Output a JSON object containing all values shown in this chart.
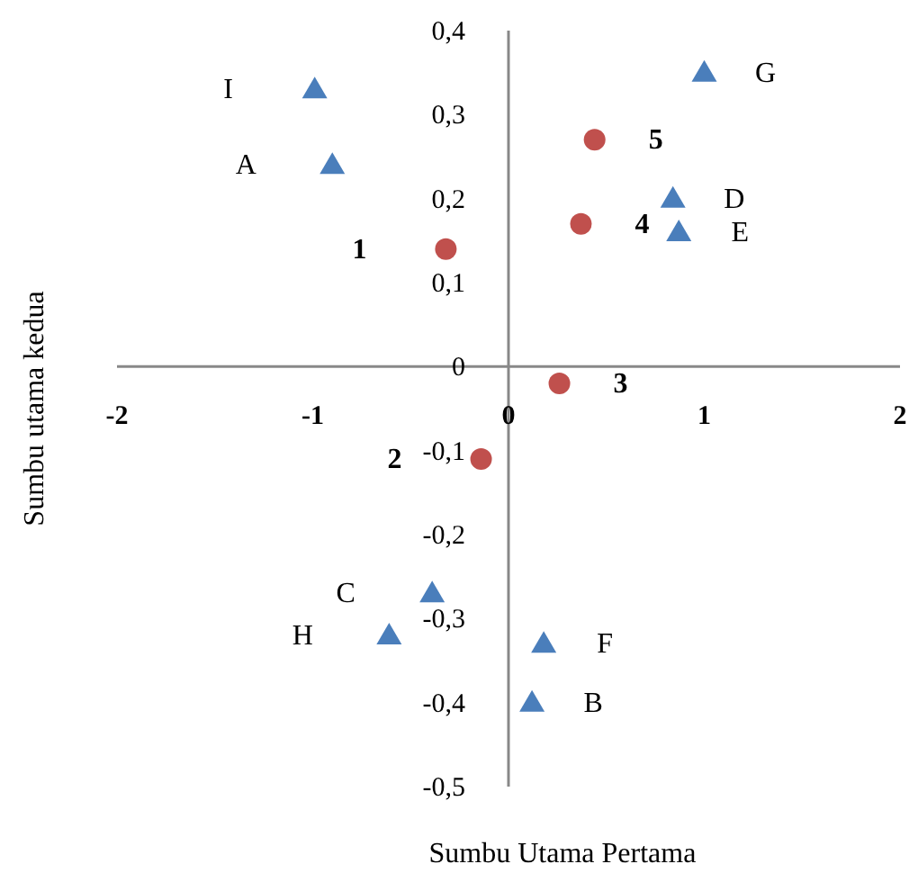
{
  "chart_data": {
    "type": "scatter",
    "xlabel": "Sumbu Utama Pertama",
    "ylabel": "Sumbu utama kedua",
    "xlim": [
      -2,
      2
    ],
    "xticks": [
      -2,
      -1,
      0,
      1,
      2
    ],
    "ylim": [
      -0.5,
      0.4
    ],
    "yticks": [
      {
        "value": -0.5,
        "label": "-0,5"
      },
      {
        "value": -0.4,
        "label": "-0,4"
      },
      {
        "value": -0.3,
        "label": "-0,3"
      },
      {
        "value": -0.2,
        "label": "-0,2"
      },
      {
        "value": -0.1,
        "label": "-0,1"
      },
      {
        "value": 0,
        "label": "0"
      },
      {
        "value": 0.1,
        "label": "0,1"
      },
      {
        "value": 0.2,
        "label": "0,2"
      },
      {
        "value": 0.3,
        "label": "0,3"
      },
      {
        "value": 0.4,
        "label": "0,4"
      }
    ],
    "grid": false,
    "series": [
      {
        "color": "#4a7ebb",
        "marker": "triangle",
        "x": [
          -0.99,
          -0.9,
          1.0,
          0.84,
          0.87,
          -0.39,
          -0.61,
          0.18,
          0.12
        ],
        "values": [
          0.33,
          0.24,
          0.35,
          0.2,
          0.16,
          -0.27,
          -0.32,
          -0.33,
          -0.4
        ]
      },
      {
        "color": "#c0504d",
        "marker": "circle",
        "x": [
          -0.32,
          0.44,
          0.37,
          0.26,
          -0.14
        ],
        "values": [
          0.14,
          0.27,
          0.17,
          -0.02,
          -0.11
        ]
      }
    ],
    "annotations": [
      {
        "text": "I",
        "x": -0.99,
        "y": 0.33
      },
      {
        "text": "A",
        "x": -0.9,
        "y": 0.24
      },
      {
        "text": "G",
        "x": 1.0,
        "y": 0.35
      },
      {
        "text": "D",
        "x": 0.84,
        "y": 0.2
      },
      {
        "text": "E",
        "x": 0.87,
        "y": 0.16
      },
      {
        "text": "C",
        "x": -0.39,
        "y": -0.27
      },
      {
        "text": "H",
        "x": -0.61,
        "y": -0.32
      },
      {
        "text": "F",
        "x": 0.18,
        "y": -0.33
      },
      {
        "text": "B",
        "x": 0.12,
        "y": -0.4
      },
      {
        "text": "1",
        "x": -0.32,
        "y": 0.14
      },
      {
        "text": "5",
        "x": 0.44,
        "y": 0.27
      },
      {
        "text": "4",
        "x": 0.37,
        "y": 0.17
      },
      {
        "text": "3",
        "x": 0.26,
        "y": -0.02
      },
      {
        "text": "2",
        "x": -0.14,
        "y": -0.11
      }
    ]
  }
}
